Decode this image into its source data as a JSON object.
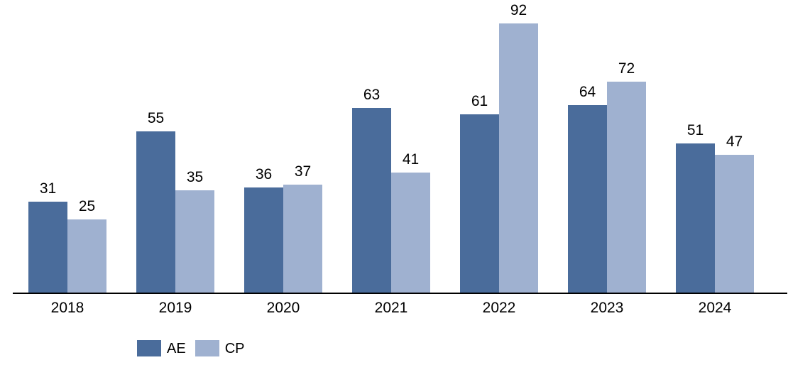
{
  "chart_data": {
    "type": "bar",
    "title": "",
    "categories": [
      "2018",
      "2019",
      "2020",
      "2021",
      "2022",
      "2023",
      "2024"
    ],
    "series": [
      {
        "name": "AE",
        "color": "#4A6C9B",
        "values": [
          31,
          55,
          36,
          63,
          61,
          64,
          51
        ]
      },
      {
        "name": "CP",
        "color": "#9FB1D0",
        "values": [
          25,
          35,
          37,
          41,
          92,
          72,
          47
        ]
      }
    ],
    "ylim": [
      0,
      100
    ],
    "xlabel": "",
    "ylabel": "",
    "grid": false,
    "data_labels": true,
    "legend_position": "bottom",
    "legend_labels": [
      "AE",
      "CP"
    ],
    "axis_line_color": "#000000",
    "text_color": "#000000",
    "background_color": "#ffffff"
  }
}
